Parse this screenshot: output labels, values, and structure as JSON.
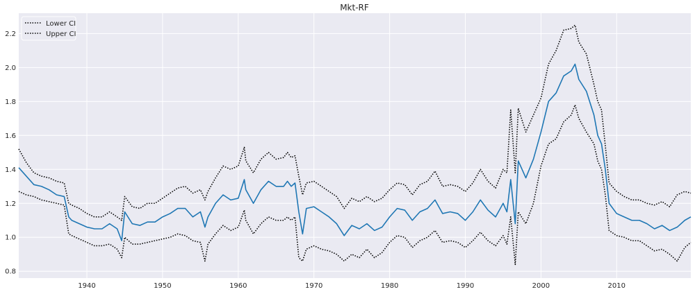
{
  "chart_data": {
    "type": "line",
    "title": "Mkt-RF",
    "xlabel": "",
    "ylabel": "",
    "xlim": [
      1931,
      2019.8
    ],
    "ylim": [
      0.76,
      2.32
    ],
    "xticks": [
      1940,
      1950,
      1960,
      1970,
      1980,
      1990,
      2000,
      2010
    ],
    "yticks": [
      0.8,
      1.0,
      1.2,
      1.4,
      1.6,
      1.8,
      2.0,
      2.2
    ],
    "ytick_labels": [
      "0.8",
      "1.0",
      "1.2",
      "1.4",
      "1.6",
      "1.8",
      "2.0",
      "2.2"
    ],
    "grid": true,
    "legend_position": "top-left",
    "legend": [
      "Lower CI",
      "Upper CI"
    ],
    "series": [
      {
        "key": "estimate",
        "color": "#1f77b4",
        "style": "solid",
        "x": [
          1931,
          1932,
          1933,
          1934,
          1935,
          1936,
          1937,
          1937.6,
          1938,
          1939,
          1940,
          1941,
          1942,
          1943,
          1944,
          1944.6,
          1945,
          1946,
          1947,
          1948,
          1949,
          1950,
          1951,
          1952,
          1953,
          1954,
          1955,
          1955.6,
          1956,
          1957,
          1958,
          1959,
          1960,
          1960.8,
          1961,
          1962,
          1963,
          1964,
          1965,
          1966,
          1966.5,
          1967,
          1967.5,
          1968,
          1968.5,
          1969,
          1970,
          1971,
          1972,
          1973,
          1974,
          1975,
          1976,
          1977,
          1978,
          1979,
          1980,
          1981,
          1982,
          1983,
          1984,
          1985,
          1986,
          1987,
          1988,
          1989,
          1990,
          1991,
          1992,
          1993,
          1994,
          1995,
          1995.5,
          1996,
          1996.6,
          1997,
          1998,
          1999,
          2000,
          2001,
          2002,
          2003,
          2004,
          2004.5,
          2005,
          2006,
          2007,
          2007.5,
          2008,
          2008.5,
          2009,
          2010,
          2011,
          2012,
          2013,
          2014,
          2015,
          2016,
          2017,
          2018,
          2019,
          2019.8
        ],
        "y": [
          1.41,
          1.36,
          1.31,
          1.3,
          1.28,
          1.25,
          1.24,
          1.12,
          1.1,
          1.08,
          1.06,
          1.05,
          1.05,
          1.08,
          1.05,
          0.98,
          1.15,
          1.08,
          1.07,
          1.09,
          1.09,
          1.12,
          1.14,
          1.17,
          1.17,
          1.12,
          1.15,
          1.06,
          1.12,
          1.2,
          1.25,
          1.22,
          1.23,
          1.34,
          1.28,
          1.2,
          1.28,
          1.33,
          1.3,
          1.3,
          1.33,
          1.3,
          1.32,
          1.15,
          1.02,
          1.17,
          1.18,
          1.15,
          1.12,
          1.08,
          1.01,
          1.07,
          1.05,
          1.08,
          1.04,
          1.06,
          1.12,
          1.17,
          1.16,
          1.1,
          1.15,
          1.17,
          1.22,
          1.14,
          1.15,
          1.14,
          1.1,
          1.15,
          1.22,
          1.16,
          1.12,
          1.2,
          1.15,
          1.34,
          1.08,
          1.45,
          1.35,
          1.46,
          1.62,
          1.8,
          1.85,
          1.95,
          1.98,
          2.02,
          1.93,
          1.86,
          1.72,
          1.6,
          1.55,
          1.4,
          1.2,
          1.14,
          1.12,
          1.1,
          1.1,
          1.08,
          1.05,
          1.07,
          1.04,
          1.06,
          1.1,
          1.12
        ]
      },
      {
        "name": "Lower CI",
        "key": "lower",
        "color": "#000000",
        "style": "dotted",
        "x": [
          1931,
          1932,
          1933,
          1934,
          1935,
          1936,
          1937,
          1937.6,
          1938,
          1939,
          1940,
          1941,
          1942,
          1943,
          1944,
          1944.6,
          1945,
          1946,
          1947,
          1948,
          1949,
          1950,
          1951,
          1952,
          1953,
          1954,
          1955,
          1955.6,
          1956,
          1957,
          1958,
          1959,
          1960,
          1960.8,
          1961,
          1962,
          1963,
          1964,
          1965,
          1966,
          1966.5,
          1967,
          1967.5,
          1968,
          1968.5,
          1969,
          1970,
          1971,
          1972,
          1973,
          1974,
          1975,
          1976,
          1977,
          1978,
          1979,
          1980,
          1981,
          1982,
          1983,
          1984,
          1985,
          1986,
          1987,
          1988,
          1989,
          1990,
          1991,
          1992,
          1993,
          1994,
          1995,
          1995.5,
          1996,
          1996.6,
          1997,
          1998,
          1999,
          2000,
          2001,
          2002,
          2003,
          2004,
          2004.5,
          2005,
          2006,
          2007,
          2007.5,
          2008,
          2008.5,
          2009,
          2010,
          2011,
          2012,
          2013,
          2014,
          2015,
          2016,
          2017,
          2018,
          2019,
          2019.8
        ],
        "y": [
          1.27,
          1.25,
          1.24,
          1.22,
          1.21,
          1.2,
          1.19,
          1.02,
          1.01,
          0.99,
          0.97,
          0.95,
          0.95,
          0.96,
          0.93,
          0.88,
          1.0,
          0.96,
          0.96,
          0.97,
          0.98,
          0.99,
          1.0,
          1.02,
          1.01,
          0.98,
          0.97,
          0.86,
          0.96,
          1.02,
          1.07,
          1.04,
          1.06,
          1.16,
          1.1,
          1.02,
          1.08,
          1.12,
          1.1,
          1.1,
          1.12,
          1.1,
          1.12,
          0.88,
          0.86,
          0.93,
          0.95,
          0.93,
          0.92,
          0.9,
          0.86,
          0.9,
          0.88,
          0.93,
          0.88,
          0.91,
          0.97,
          1.01,
          1.0,
          0.94,
          0.98,
          1.0,
          1.04,
          0.97,
          0.98,
          0.97,
          0.94,
          0.98,
          1.03,
          0.98,
          0.95,
          1.01,
          0.96,
          1.12,
          0.84,
          1.15,
          1.08,
          1.2,
          1.42,
          1.55,
          1.58,
          1.68,
          1.72,
          1.78,
          1.7,
          1.62,
          1.55,
          1.45,
          1.4,
          1.25,
          1.04,
          1.01,
          1.0,
          0.98,
          0.98,
          0.95,
          0.92,
          0.93,
          0.9,
          0.86,
          0.94,
          0.97
        ]
      },
      {
        "name": "Upper CI",
        "key": "upper",
        "color": "#000000",
        "style": "dotted",
        "x": [
          1931,
          1932,
          1933,
          1934,
          1935,
          1936,
          1937,
          1937.6,
          1938,
          1939,
          1940,
          1941,
          1942,
          1943,
          1944,
          1944.6,
          1945,
          1946,
          1947,
          1948,
          1949,
          1950,
          1951,
          1952,
          1953,
          1954,
          1955,
          1955.6,
          1956,
          1957,
          1958,
          1959,
          1960,
          1960.8,
          1961,
          1962,
          1963,
          1964,
          1965,
          1966,
          1966.5,
          1967,
          1967.5,
          1968,
          1968.5,
          1969,
          1970,
          1971,
          1972,
          1973,
          1974,
          1975,
          1976,
          1977,
          1978,
          1979,
          1980,
          1981,
          1982,
          1983,
          1984,
          1985,
          1986,
          1987,
          1988,
          1989,
          1990,
          1991,
          1992,
          1993,
          1994,
          1995,
          1995.5,
          1996,
          1996.6,
          1997,
          1998,
          1999,
          2000,
          2001,
          2002,
          2003,
          2004,
          2004.5,
          2005,
          2006,
          2007,
          2007.5,
          2008,
          2008.5,
          2009,
          2010,
          2011,
          2012,
          2013,
          2014,
          2015,
          2016,
          2017,
          2018,
          2019,
          2019.8
        ],
        "y": [
          1.52,
          1.44,
          1.38,
          1.36,
          1.35,
          1.33,
          1.32,
          1.2,
          1.19,
          1.17,
          1.14,
          1.12,
          1.12,
          1.15,
          1.12,
          1.1,
          1.24,
          1.18,
          1.17,
          1.2,
          1.2,
          1.23,
          1.26,
          1.29,
          1.3,
          1.26,
          1.28,
          1.22,
          1.27,
          1.35,
          1.42,
          1.4,
          1.42,
          1.53,
          1.45,
          1.38,
          1.46,
          1.5,
          1.46,
          1.47,
          1.5,
          1.47,
          1.48,
          1.36,
          1.25,
          1.32,
          1.33,
          1.3,
          1.27,
          1.24,
          1.17,
          1.23,
          1.21,
          1.24,
          1.21,
          1.23,
          1.28,
          1.32,
          1.31,
          1.25,
          1.31,
          1.33,
          1.39,
          1.3,
          1.31,
          1.3,
          1.27,
          1.32,
          1.4,
          1.33,
          1.29,
          1.4,
          1.38,
          1.75,
          1.38,
          1.76,
          1.62,
          1.72,
          1.82,
          2.02,
          2.1,
          2.22,
          2.23,
          2.25,
          2.15,
          2.08,
          1.9,
          1.8,
          1.75,
          1.54,
          1.32,
          1.27,
          1.24,
          1.22,
          1.22,
          1.2,
          1.19,
          1.21,
          1.18,
          1.25,
          1.27,
          1.26
        ]
      }
    ]
  }
}
